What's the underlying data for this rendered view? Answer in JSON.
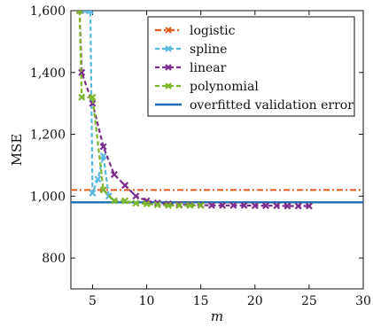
{
  "chart_data": {
    "type": "line",
    "title": "",
    "xlabel": "m",
    "ylabel": "MSE",
    "xlim": [
      3,
      30
    ],
    "ylim": [
      700,
      1600
    ],
    "xticks": [
      5,
      10,
      15,
      20,
      25,
      30
    ],
    "yticks": [
      800,
      1000,
      1200,
      1400,
      1600
    ],
    "xtick_labels": [
      "5",
      "10",
      "15",
      "20",
      "25",
      "30"
    ],
    "ytick_labels": [
      "800",
      "1,000",
      "1,200",
      "1,400",
      "1,600"
    ],
    "grid": false,
    "legend_position": "top-right",
    "series": [
      {
        "name": "logistic",
        "color": "#e35b1f",
        "dash": "dashdot",
        "marker": "x",
        "x": [
          6
        ],
        "y": [
          1020
        ]
      },
      {
        "name": "spline",
        "color": "#5ab7de",
        "dash": "dashed",
        "marker": "x",
        "x": [
          4.3,
          4.8,
          5,
          5.5,
          6,
          6.5,
          7
        ],
        "y": [
          1600,
          1600,
          1010,
          1055,
          1130,
          1000,
          985
        ]
      },
      {
        "name": "linear",
        "color": "#7b2d8e",
        "dash": "dashed",
        "marker": "x",
        "x": [
          3.8,
          4,
          5,
          6,
          7,
          8,
          9,
          10,
          11,
          12,
          13,
          14,
          15,
          16,
          17,
          18,
          19,
          20,
          21,
          22,
          23,
          24,
          25
        ],
        "y": [
          1600,
          1400,
          1300,
          1160,
          1070,
          1035,
          1000,
          985,
          978,
          975,
          973,
          972,
          971,
          970,
          970,
          970,
          970,
          969,
          969,
          969,
          968,
          968,
          968
        ]
      },
      {
        "name": "polynomial",
        "color": "#7cb52a",
        "dash": "dashed",
        "marker": "x",
        "x": [
          3.8,
          4,
          5,
          6,
          7,
          8,
          9,
          10,
          11,
          12,
          13,
          14,
          15
        ],
        "y": [
          1600,
          1320,
          1320,
          1020,
          985,
          985,
          977,
          975,
          972,
          970,
          970,
          970,
          970
        ]
      },
      {
        "name": "overfitted validation error",
        "color": "#1f6bb0",
        "dash": "solid",
        "marker": "none",
        "y_const": 980
      }
    ],
    "logistic_const": 1020
  }
}
